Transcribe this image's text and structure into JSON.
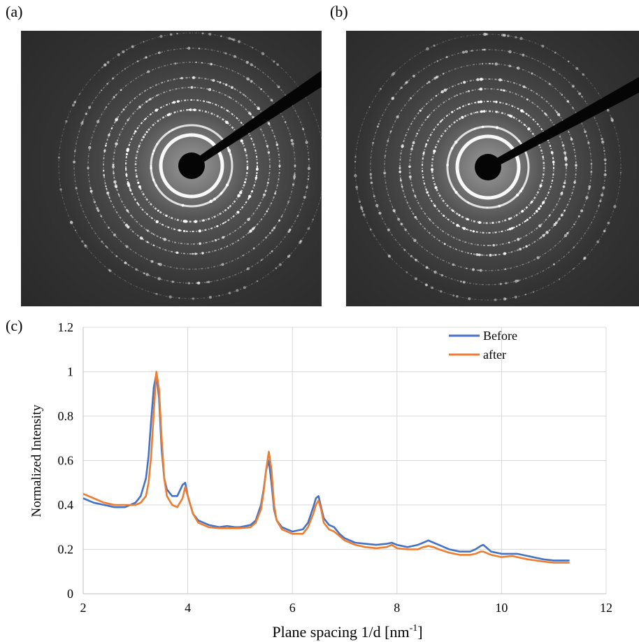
{
  "panels": {
    "a": {
      "label": "(a)"
    },
    "b": {
      "label": "(b)"
    },
    "c": {
      "label": "(c)"
    }
  },
  "diffraction_images": {
    "a": {
      "background_color": "#2a2a2a",
      "ring_color": "#ffffff",
      "beam_stop_color": "#050505"
    },
    "b": {
      "background_color": "#2a2a2a",
      "ring_color": "#ffffff",
      "beam_stop_color": "#050505"
    }
  },
  "chart_data": {
    "type": "line",
    "title": "",
    "xlabel": "Plane spacing 1/d [nm",
    "xlabel_superscript": "-1",
    "xlabel_suffix": "]",
    "ylabel": "Normalized Intensity",
    "xlim": [
      2,
      12
    ],
    "ylim": [
      0,
      1.2
    ],
    "xticks": [
      2,
      4,
      6,
      8,
      10,
      12
    ],
    "yticks": [
      0,
      0.2,
      0.4,
      0.6,
      0.8,
      1,
      1.2
    ],
    "xtick_labels": [
      "2",
      "4",
      "6",
      "8",
      "10",
      "12"
    ],
    "ytick_labels": [
      "0",
      "0.2",
      "0.4",
      "0.6",
      "0.8",
      "1",
      "1.2"
    ],
    "grid": true,
    "legend_position": "top-right",
    "series": [
      {
        "name": "Before",
        "color": "#4472c4",
        "x": [
          2.0,
          2.2,
          2.4,
          2.6,
          2.8,
          3.0,
          3.1,
          3.2,
          3.25,
          3.3,
          3.35,
          3.4,
          3.45,
          3.5,
          3.55,
          3.6,
          3.7,
          3.8,
          3.9,
          3.95,
          4.0,
          4.1,
          4.2,
          4.4,
          4.6,
          4.75,
          4.9,
          5.0,
          5.2,
          5.3,
          5.4,
          5.45,
          5.5,
          5.55,
          5.6,
          5.65,
          5.7,
          5.8,
          6.0,
          6.2,
          6.3,
          6.4,
          6.45,
          6.5,
          6.55,
          6.6,
          6.7,
          6.8,
          6.9,
          7.0,
          7.2,
          7.4,
          7.6,
          7.8,
          7.9,
          8.0,
          8.2,
          8.4,
          8.5,
          8.6,
          8.7,
          8.8,
          9.0,
          9.2,
          9.4,
          9.5,
          9.6,
          9.65,
          9.7,
          9.8,
          10.0,
          10.2,
          10.3,
          10.5,
          10.8,
          11.0,
          11.3
        ],
        "y": [
          0.43,
          0.41,
          0.4,
          0.39,
          0.39,
          0.41,
          0.44,
          0.52,
          0.62,
          0.78,
          0.93,
          0.99,
          0.88,
          0.65,
          0.52,
          0.47,
          0.44,
          0.44,
          0.49,
          0.5,
          0.44,
          0.36,
          0.33,
          0.31,
          0.3,
          0.305,
          0.3,
          0.3,
          0.31,
          0.33,
          0.4,
          0.47,
          0.56,
          0.6,
          0.5,
          0.38,
          0.33,
          0.3,
          0.28,
          0.29,
          0.32,
          0.39,
          0.43,
          0.44,
          0.39,
          0.34,
          0.31,
          0.3,
          0.27,
          0.25,
          0.23,
          0.225,
          0.22,
          0.225,
          0.23,
          0.22,
          0.21,
          0.22,
          0.23,
          0.24,
          0.23,
          0.22,
          0.2,
          0.19,
          0.19,
          0.2,
          0.215,
          0.22,
          0.21,
          0.19,
          0.18,
          0.18,
          0.18,
          0.17,
          0.155,
          0.15,
          0.15
        ]
      },
      {
        "name": "after",
        "color": "#ed7d31",
        "x": [
          2.0,
          2.2,
          2.4,
          2.6,
          2.8,
          3.0,
          3.1,
          3.2,
          3.25,
          3.3,
          3.35,
          3.4,
          3.45,
          3.5,
          3.55,
          3.6,
          3.7,
          3.8,
          3.9,
          3.95,
          4.0,
          4.1,
          4.2,
          4.4,
          4.6,
          4.75,
          4.9,
          5.0,
          5.2,
          5.3,
          5.4,
          5.45,
          5.5,
          5.55,
          5.6,
          5.65,
          5.7,
          5.8,
          6.0,
          6.2,
          6.3,
          6.4,
          6.45,
          6.5,
          6.55,
          6.6,
          6.7,
          6.8,
          6.9,
          7.0,
          7.2,
          7.4,
          7.6,
          7.8,
          7.9,
          8.0,
          8.2,
          8.4,
          8.5,
          8.6,
          8.7,
          8.8,
          9.0,
          9.2,
          9.4,
          9.5,
          9.6,
          9.65,
          9.7,
          9.8,
          10.0,
          10.2,
          10.3,
          10.5,
          10.8,
          11.0,
          11.3
        ],
        "y": [
          0.45,
          0.43,
          0.41,
          0.4,
          0.4,
          0.4,
          0.41,
          0.44,
          0.5,
          0.62,
          0.82,
          1.0,
          0.92,
          0.7,
          0.52,
          0.44,
          0.4,
          0.39,
          0.43,
          0.48,
          0.44,
          0.36,
          0.32,
          0.3,
          0.295,
          0.295,
          0.295,
          0.295,
          0.3,
          0.32,
          0.38,
          0.46,
          0.56,
          0.64,
          0.56,
          0.4,
          0.33,
          0.29,
          0.27,
          0.27,
          0.3,
          0.36,
          0.4,
          0.42,
          0.38,
          0.32,
          0.29,
          0.28,
          0.26,
          0.24,
          0.22,
          0.21,
          0.205,
          0.21,
          0.22,
          0.205,
          0.2,
          0.2,
          0.21,
          0.215,
          0.21,
          0.2,
          0.185,
          0.175,
          0.175,
          0.18,
          0.19,
          0.19,
          0.185,
          0.175,
          0.165,
          0.17,
          0.165,
          0.155,
          0.145,
          0.14,
          0.14
        ]
      }
    ]
  }
}
